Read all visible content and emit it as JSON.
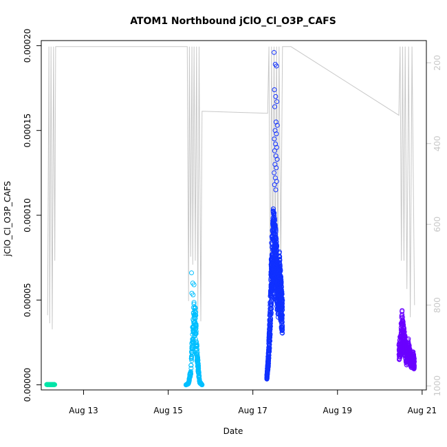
{
  "chart_data": {
    "type": "scatter",
    "title": "ATOM1 Northbound jClO_Cl_O3P_CAFS",
    "xlabel": "Date",
    "ylabel": "jClO_Cl_O3P_CAFS",
    "x_range_days": [
      12.0,
      21.1
    ],
    "ylim": [
      -3e-06,
      0.000203
    ],
    "x_ticks": [
      {
        "day": 13,
        "label": "Aug 13"
      },
      {
        "day": 15,
        "label": "Aug 15"
      },
      {
        "day": 17,
        "label": "Aug 17"
      },
      {
        "day": 19,
        "label": "Aug 19"
      },
      {
        "day": 21,
        "label": "Aug 21"
      }
    ],
    "y_ticks": [
      {
        "value": 0.0,
        "label": "0.00000"
      },
      {
        "value": 5e-05,
        "label": "0.00005"
      },
      {
        "value": 0.0001,
        "label": "0.00010"
      },
      {
        "value": 0.00015,
        "label": "0.00015"
      },
      {
        "value": 0.0002,
        "label": "0.00020"
      }
    ],
    "right_axis": {
      "range": [
        1010,
        145
      ],
      "color": "#c8c8c8",
      "ticks": [
        {
          "value": 200,
          "label": "200"
        },
        {
          "value": 400,
          "label": "400"
        },
        {
          "value": 600,
          "label": "600"
        },
        {
          "value": 800,
          "label": "800"
        },
        {
          "value": 1000,
          "label": "1000"
        }
      ],
      "trace": [
        [
          12.15,
          825
        ],
        [
          12.18,
          160
        ],
        [
          12.2,
          845
        ],
        [
          12.23,
          160
        ],
        [
          12.26,
          860
        ],
        [
          12.29,
          160
        ],
        [
          12.32,
          690
        ],
        [
          12.34,
          160
        ],
        [
          15.45,
          160
        ],
        [
          15.48,
          790
        ],
        [
          15.5,
          160
        ],
        [
          15.53,
          680
        ],
        [
          15.56,
          160
        ],
        [
          15.58,
          700
        ],
        [
          15.61,
          160
        ],
        [
          15.64,
          690
        ],
        [
          15.67,
          160
        ],
        [
          15.7,
          820
        ],
        [
          15.73,
          160
        ],
        [
          15.77,
          840
        ],
        [
          15.8,
          320
        ],
        [
          17.35,
          325
        ],
        [
          17.38,
          160
        ],
        [
          17.41,
          860
        ],
        [
          17.44,
          160
        ],
        [
          17.47,
          700
        ],
        [
          17.5,
          160
        ],
        [
          17.53,
          700
        ],
        [
          17.56,
          160
        ],
        [
          17.59,
          690
        ],
        [
          17.62,
          160
        ],
        [
          17.66,
          700
        ],
        [
          17.7,
          160
        ],
        [
          17.9,
          160
        ],
        [
          20.45,
          330
        ],
        [
          20.48,
          160
        ],
        [
          20.51,
          690
        ],
        [
          20.54,
          160
        ],
        [
          20.57,
          690
        ],
        [
          20.6,
          160
        ],
        [
          20.64,
          760
        ],
        [
          20.68,
          160
        ],
        [
          20.72,
          830
        ],
        [
          20.76,
          160
        ],
        [
          20.82,
          800
        ]
      ]
    },
    "series": [
      {
        "color": "#00e5a8",
        "clusters": [
          {
            "x": [
              12.13,
              12.32
            ],
            "shape": [
              [
                0,
                2e-07
              ],
              [
                1,
                2e-07
              ]
            ],
            "n": 70
          }
        ]
      },
      {
        "color": "#00bfff",
        "clusters": [
          {
            "x": [
              15.42,
              15.8
            ],
            "shape": [
              [
                0,
                0.0
              ],
              [
                0.15,
                1e-06
              ],
              [
                0.3,
                1e-05
              ],
              [
                0.4,
                3.5e-05
              ],
              [
                0.5,
                5.2e-05
              ],
              [
                0.6,
                4.5e-05
              ],
              [
                0.7,
                2e-05
              ],
              [
                0.85,
                2e-06
              ],
              [
                1,
                0.0
              ]
            ],
            "n": 320
          },
          {
            "x": [
              15.55,
              15.63
            ],
            "points": [
              6.6e-05,
              6e-05,
              5.9e-05,
              5.4e-05,
              5.3e-05
            ]
          }
        ]
      },
      {
        "color": "#1030ff",
        "clusters": [
          {
            "x": [
              17.33,
              17.7
            ],
            "shape": [
              [
                0,
                5e-06
              ],
              [
                0.1,
                2e-05
              ],
              [
                0.2,
                4.5e-05
              ],
              [
                0.3,
                8.5e-05
              ],
              [
                0.4,
                0.000105
              ],
              [
                0.5,
                0.0001
              ],
              [
                0.6,
                9e-05
              ],
              [
                0.7,
                7e-05
              ],
              [
                0.8,
                8e-05
              ],
              [
                0.9,
                6.5e-05
              ],
              [
                1,
                5e-05
              ]
            ],
            "n": 900
          },
          {
            "x": [
              17.5,
              17.58
            ],
            "points": [
              0.000196,
              0.000189,
              0.000188,
              0.000174,
              0.00017,
              0.000167,
              0.000164,
              0.000155,
              0.000153,
              0.00015,
              0.000148,
              0.000145,
              0.000142,
              0.00014,
              0.000138,
              0.000135,
              0.000133,
              0.00013,
              0.000128,
              0.000125,
              0.000122,
              0.00012,
              0.000118,
              0.000115
            ]
          }
        ]
      },
      {
        "color": "#6a00ff",
        "clusters": [
          {
            "x": [
              20.45,
              20.82
            ],
            "shape": [
              [
                0,
                2.5e-05
              ],
              [
                0.1,
                3e-05
              ],
              [
                0.2,
                4.5e-05
              ],
              [
                0.3,
                3.5e-05
              ],
              [
                0.4,
                3e-05
              ],
              [
                0.5,
                2e-05
              ],
              [
                0.6,
                2.8e-05
              ],
              [
                0.7,
                2.2e-05
              ],
              [
                0.8,
                1.8e-05
              ],
              [
                0.9,
                2e-05
              ],
              [
                1,
                1.5e-05
              ]
            ],
            "n": 420
          }
        ]
      }
    ],
    "grid": false,
    "legend": "none"
  }
}
